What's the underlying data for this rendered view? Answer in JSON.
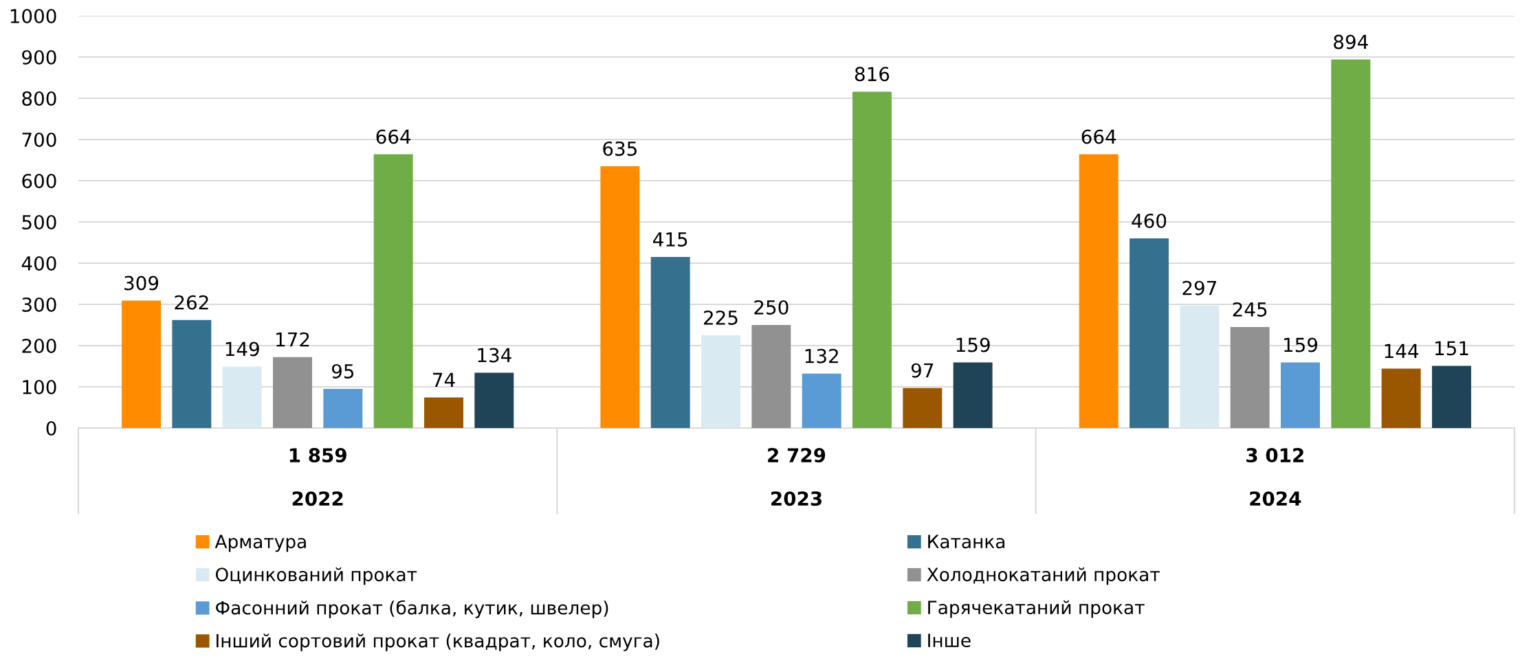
{
  "chart_data": {
    "type": "bar",
    "categories": [
      "2022",
      "2023",
      "2024"
    ],
    "totals": [
      "1 859",
      "2 729",
      "3 012"
    ],
    "series": [
      {
        "name": "Арматура",
        "color": "#ff8c00",
        "values": [
          309,
          635,
          664
        ]
      },
      {
        "name": "Катанка",
        "color": "#35718f",
        "values": [
          262,
          415,
          460
        ]
      },
      {
        "name": "Оцинкований прокат",
        "color": "#daeaf3",
        "values": [
          149,
          225,
          297
        ]
      },
      {
        "name": "Холоднокатаний прокат",
        "color": "#919191",
        "values": [
          172,
          250,
          245
        ]
      },
      {
        "name": "Фасонний прокат (балка, кутик, швелер)",
        "color": "#5b9bd5",
        "values": [
          95,
          132,
          159
        ]
      },
      {
        "name": "Гарячекатаний прокат",
        "color": "#70ad47",
        "values": [
          664,
          816,
          894
        ]
      },
      {
        "name": "Інший сортовий прокат (квадрат, коло, смуга)",
        "color": "#9a5700",
        "values": [
          74,
          97,
          144
        ]
      },
      {
        "name": "Інше",
        "color": "#1f4458",
        "values": [
          134,
          159,
          151
        ]
      }
    ],
    "ylim": [
      0,
      1000
    ],
    "yticks": [
      0,
      100,
      200,
      300,
      400,
      500,
      600,
      700,
      800,
      900,
      1000
    ],
    "grid": "y",
    "legend": "bottom",
    "data_labels": true
  }
}
